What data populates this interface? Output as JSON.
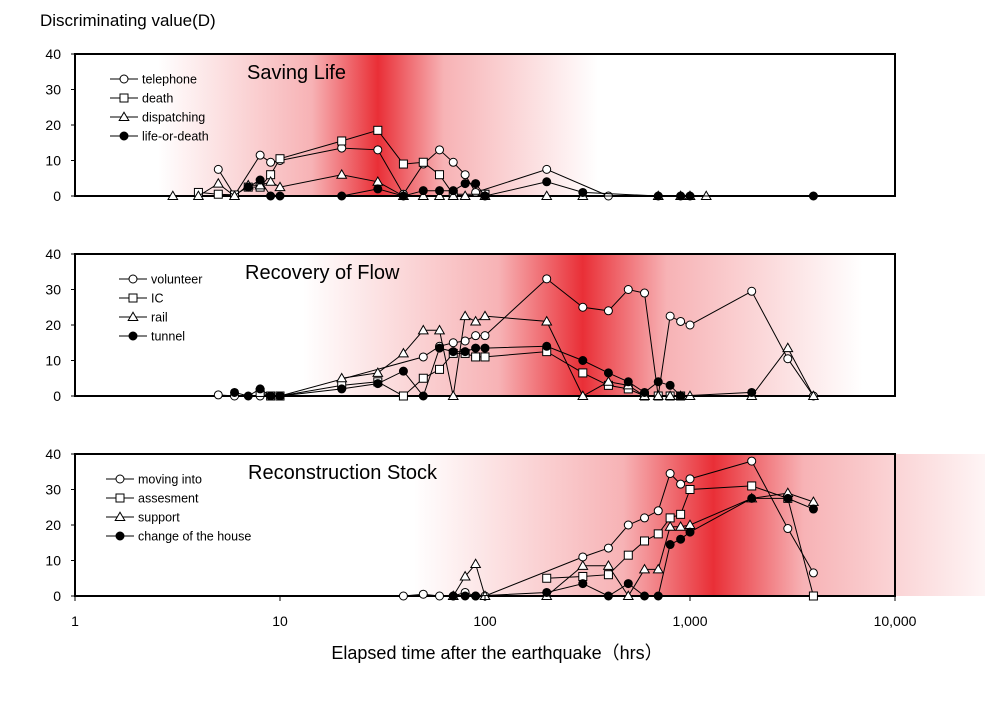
{
  "figure": {
    "ylabel": "Discriminating   value(D)",
    "xlabel": "Elapsed time after the earthquake（hrs）",
    "x_ticks": [
      {
        "value": 1,
        "label": "1"
      },
      {
        "value": 10,
        "label": "10"
      },
      {
        "value": 100,
        "label": "100"
      },
      {
        "value": 1000,
        "label": "1,000"
      },
      {
        "value": 10000,
        "label": "10,000"
      }
    ],
    "y_ticks": [
      0,
      10,
      20,
      30,
      40
    ]
  },
  "colors": {
    "highlight": "#e8242c",
    "line": "#000000"
  },
  "chart_data": [
    {
      "type": "line",
      "title": "Saving Life",
      "x_scale": "log",
      "xlim": [
        1,
        10000
      ],
      "ylim": [
        0,
        40
      ],
      "highlight_center_x": 30,
      "legend_position": "top-left",
      "series": [
        {
          "name": "telephone",
          "marker": "circle-open",
          "points": [
            [
              5,
              7.5
            ],
            [
              6,
              0.2
            ],
            [
              8,
              11.5
            ],
            [
              9,
              9.5
            ],
            [
              10,
              10
            ],
            [
              20,
              13.5
            ],
            [
              30,
              13
            ],
            [
              40,
              0.5
            ],
            [
              50,
              9
            ],
            [
              60,
              13
            ],
            [
              70,
              9.5
            ],
            [
              80,
              6
            ],
            [
              90,
              1
            ],
            [
              200,
              7.5
            ],
            [
              400,
              0
            ]
          ]
        },
        {
          "name": "death",
          "marker": "square-open",
          "points": [
            [
              4,
              1
            ],
            [
              5,
              0.5
            ],
            [
              6,
              0.3
            ],
            [
              7,
              2.5
            ],
            [
              8,
              2.5
            ],
            [
              9,
              6
            ],
            [
              10,
              10.5
            ],
            [
              20,
              15.5
            ],
            [
              30,
              18.5
            ],
            [
              40,
              9
            ],
            [
              50,
              9.5
            ],
            [
              60,
              6
            ],
            [
              70,
              0.5
            ],
            [
              100,
              0.5
            ]
          ]
        },
        {
          "name": "dispatching",
          "marker": "triangle-open",
          "points": [
            [
              3,
              0
            ],
            [
              4,
              0
            ],
            [
              5,
              3.5
            ],
            [
              6,
              0
            ],
            [
              7,
              3
            ],
            [
              8,
              3
            ],
            [
              9,
              4
            ],
            [
              10,
              2.5
            ],
            [
              20,
              6
            ],
            [
              30,
              4
            ],
            [
              40,
              0
            ],
            [
              50,
              0
            ],
            [
              60,
              0
            ],
            [
              70,
              0
            ],
            [
              80,
              0
            ],
            [
              100,
              0
            ],
            [
              200,
              0
            ],
            [
              300,
              0
            ],
            [
              700,
              0
            ],
            [
              900,
              0
            ],
            [
              1000,
              0
            ],
            [
              1200,
              0
            ]
          ]
        },
        {
          "name": "life-or-death",
          "marker": "circle-filled",
          "points": [
            [
              7,
              2.5
            ],
            [
              8,
              4.5
            ],
            [
              9,
              0
            ],
            [
              10,
              0
            ],
            [
              20,
              0
            ],
            [
              30,
              2
            ],
            [
              40,
              0
            ],
            [
              50,
              1.5
            ],
            [
              60,
              1.5
            ],
            [
              70,
              1.5
            ],
            [
              80,
              3.5
            ],
            [
              90,
              3.5
            ],
            [
              100,
              0
            ],
            [
              200,
              4
            ],
            [
              300,
              1
            ],
            [
              700,
              0
            ],
            [
              900,
              0
            ],
            [
              1000,
              0
            ],
            [
              4000,
              0
            ]
          ]
        }
      ]
    },
    {
      "type": "line",
      "title": "Recovery of Flow",
      "x_scale": "log",
      "xlim": [
        1,
        10000
      ],
      "ylim": [
        0,
        40
      ],
      "highlight_center_x": 300,
      "legend_position": "top-left",
      "series": [
        {
          "name": "volunteer",
          "marker": "circle-open",
          "points": [
            [
              5,
              0.3
            ],
            [
              6,
              0
            ],
            [
              8,
              0
            ],
            [
              10,
              0
            ],
            [
              50,
              11
            ],
            [
              60,
              14
            ],
            [
              70,
              15
            ],
            [
              80,
              15.5
            ],
            [
              90,
              17
            ],
            [
              100,
              17
            ],
            [
              200,
              33
            ],
            [
              300,
              25
            ],
            [
              400,
              24
            ],
            [
              500,
              30
            ],
            [
              600,
              29
            ],
            [
              700,
              0
            ],
            [
              800,
              22.5
            ],
            [
              900,
              21
            ],
            [
              1000,
              20
            ],
            [
              2000,
              29.5
            ],
            [
              3000,
              10.5
            ],
            [
              4000,
              0
            ]
          ]
        },
        {
          "name": "IC",
          "marker": "square-open",
          "points": [
            [
              8,
              1
            ],
            [
              9,
              0
            ],
            [
              10,
              0
            ],
            [
              20,
              3
            ],
            [
              30,
              4
            ],
            [
              40,
              0
            ],
            [
              50,
              5
            ],
            [
              60,
              7.5
            ],
            [
              70,
              12
            ],
            [
              80,
              12
            ],
            [
              90,
              11
            ],
            [
              100,
              11
            ],
            [
              200,
              12.5
            ],
            [
              300,
              6.5
            ],
            [
              400,
              3
            ],
            [
              500,
              2
            ],
            [
              600,
              0
            ],
            [
              700,
              0
            ],
            [
              800,
              0
            ],
            [
              900,
              0
            ]
          ]
        },
        {
          "name": "rail",
          "marker": "triangle-open",
          "points": [
            [
              20,
              5
            ],
            [
              30,
              6.5
            ],
            [
              40,
              12
            ],
            [
              50,
              18.5
            ],
            [
              60,
              18.5
            ],
            [
              70,
              0
            ],
            [
              80,
              22.5
            ],
            [
              90,
              21
            ],
            [
              100,
              22.5
            ],
            [
              200,
              21
            ],
            [
              300,
              0
            ],
            [
              400,
              4
            ],
            [
              500,
              3
            ],
            [
              600,
              0
            ],
            [
              700,
              0
            ],
            [
              800,
              0
            ],
            [
              900,
              0
            ],
            [
              1000,
              0
            ],
            [
              2000,
              0
            ],
            [
              3000,
              13.5
            ],
            [
              4000,
              0
            ]
          ]
        },
        {
          "name": "tunnel",
          "marker": "circle-filled",
          "points": [
            [
              6,
              1
            ],
            [
              7,
              0
            ],
            [
              8,
              2
            ],
            [
              9,
              0
            ],
            [
              10,
              0
            ],
            [
              20,
              2
            ],
            [
              30,
              3.5
            ],
            [
              40,
              7
            ],
            [
              50,
              0
            ],
            [
              60,
              13.5
            ],
            [
              70,
              12.5
            ],
            [
              80,
              12.5
            ],
            [
              90,
              13.5
            ],
            [
              100,
              13.5
            ],
            [
              200,
              14
            ],
            [
              300,
              10
            ],
            [
              400,
              6.5
            ],
            [
              500,
              4
            ],
            [
              600,
              1
            ],
            [
              700,
              4
            ],
            [
              800,
              3
            ],
            [
              900,
              0
            ],
            [
              2000,
              1
            ]
          ]
        }
      ]
    },
    {
      "type": "line",
      "title": "Reconstruction Stock",
      "x_scale": "log",
      "xlim": [
        1,
        10000
      ],
      "ylim": [
        0,
        40
      ],
      "highlight_center_x": 1300,
      "legend_position": "top-left",
      "series": [
        {
          "name": "moving into",
          "marker": "circle-open",
          "points": [
            [
              40,
              0
            ],
            [
              50,
              0.5
            ],
            [
              60,
              0
            ],
            [
              70,
              0
            ],
            [
              80,
              1
            ],
            [
              90,
              0
            ],
            [
              100,
              0
            ],
            [
              300,
              11
            ],
            [
              400,
              13.5
            ],
            [
              500,
              20
            ],
            [
              600,
              22
            ],
            [
              700,
              24
            ],
            [
              800,
              34.5
            ],
            [
              900,
              31.5
            ],
            [
              1000,
              33
            ],
            [
              2000,
              38
            ],
            [
              3000,
              19
            ],
            [
              4000,
              6.5
            ]
          ]
        },
        {
          "name": "assesment",
          "marker": "square-open",
          "points": [
            [
              200,
              5
            ],
            [
              300,
              5.5
            ],
            [
              400,
              6
            ],
            [
              500,
              11.5
            ],
            [
              600,
              15.5
            ],
            [
              700,
              17.5
            ],
            [
              800,
              22
            ],
            [
              900,
              23
            ],
            [
              1000,
              30
            ],
            [
              2000,
              31
            ],
            [
              3000,
              27.5
            ],
            [
              4000,
              0
            ]
          ]
        },
        {
          "name": "support",
          "marker": "triangle-open",
          "points": [
            [
              70,
              0
            ],
            [
              80,
              5.5
            ],
            [
              90,
              9
            ],
            [
              100,
              0
            ],
            [
              200,
              0
            ],
            [
              300,
              8.5
            ],
            [
              400,
              8.5
            ],
            [
              500,
              0
            ],
            [
              600,
              7.5
            ],
            [
              700,
              7.5
            ],
            [
              800,
              19.5
            ],
            [
              900,
              19.5
            ],
            [
              1000,
              20
            ],
            [
              2000,
              27.5
            ],
            [
              3000,
              29
            ],
            [
              4000,
              26.5
            ]
          ]
        },
        {
          "name": "change of the house",
          "marker": "circle-filled",
          "points": [
            [
              70,
              0
            ],
            [
              80,
              0
            ],
            [
              90,
              0
            ],
            [
              200,
              1
            ],
            [
              300,
              3.5
            ],
            [
              400,
              0
            ],
            [
              500,
              3.5
            ],
            [
              600,
              0
            ],
            [
              700,
              0
            ],
            [
              800,
              14.5
            ],
            [
              900,
              16
            ],
            [
              1000,
              18
            ],
            [
              2000,
              27.5
            ],
            [
              3000,
              27.5
            ],
            [
              4000,
              24.5
            ]
          ]
        }
      ]
    }
  ]
}
